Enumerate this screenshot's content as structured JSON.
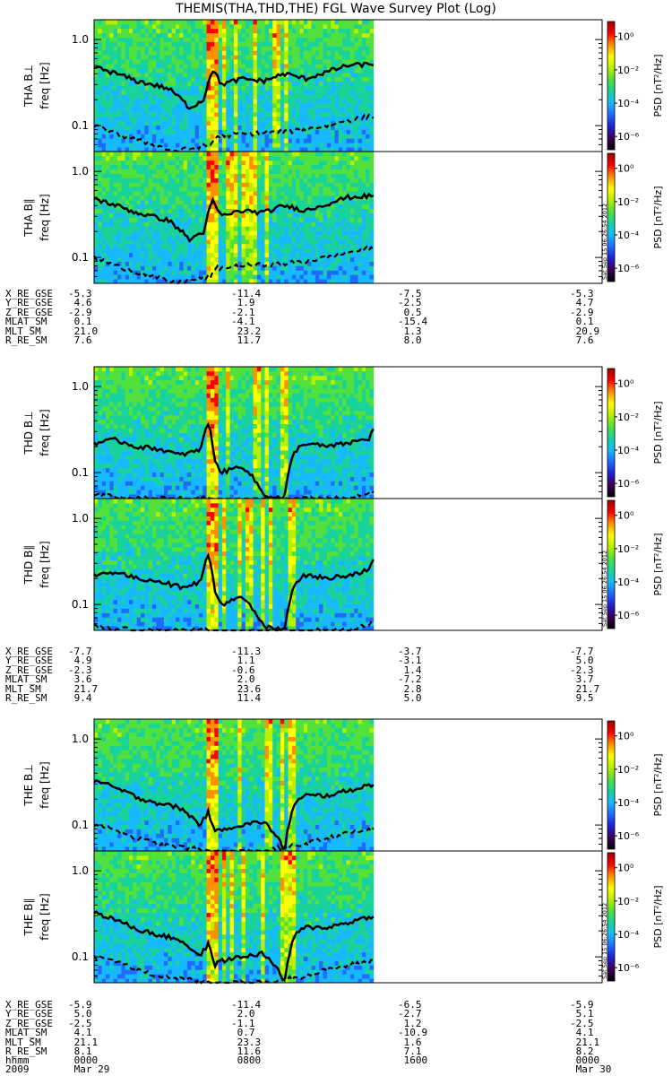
{
  "title": "THEMIS(THA,THD,THE) FGL Wave Survey Plot (Log)",
  "colors": {
    "trace": "#000000",
    "colormap": [
      "#000000",
      "#3a0055",
      "#2020d0",
      "#1e6bff",
      "#17b9ff",
      "#19d39a",
      "#52e03c",
      "#b8f000",
      "#ffff00",
      "#ff9000",
      "#ff0000",
      "#a00000"
    ]
  },
  "colorbar": {
    "label": "PSD [nT²/Hz]",
    "ticks": [
      "10⁰",
      "10⁻²",
      "10⁻⁴",
      "10⁻⁶"
    ],
    "tick_decades": [
      0,
      -2,
      -4,
      -6
    ],
    "range_decades": [
      -6.8,
      0.9
    ]
  },
  "timestamp": "Sat Sep 15 06:26:54 2012",
  "time_axis": {
    "labels": [
      {
        "row": "hhmm",
        "values": [
          "0000",
          "0800",
          "1600",
          "0000"
        ]
      },
      {
        "row": "2009",
        "values": [
          "Mar 29",
          "",
          "",
          "Mar 30"
        ]
      }
    ]
  },
  "chart_data": [
    {
      "type": "heatmap",
      "probe": "THA",
      "component": "B⊥",
      "ylabel": "freq [Hz]",
      "panel_label": "THA B⊥",
      "yscale": "log",
      "ylim": [
        0.05,
        1.7
      ],
      "yticks": [
        "1.0",
        "0.1"
      ],
      "data_coverage_hours": [
        0,
        13.2
      ],
      "xlim_hours": [
        0,
        24
      ],
      "median_freq_hz": {
        "t_hours": [
          0,
          2,
          3.5,
          4.5,
          5.2,
          5.6,
          6,
          7,
          8,
          9,
          10,
          11,
          12,
          13.2
        ],
        "values": [
          0.48,
          0.33,
          0.27,
          0.16,
          0.2,
          0.45,
          0.3,
          0.35,
          0.33,
          0.4,
          0.35,
          0.42,
          0.5,
          0.52
        ]
      },
      "lower_freq_hz": {
        "t_hours": [
          0,
          1,
          2,
          3,
          3.8,
          5.5,
          5.8,
          7,
          8,
          9,
          10,
          11,
          12,
          13.2
        ],
        "values": [
          0.1,
          0.08,
          0.068,
          0.058,
          0.05,
          0.06,
          0.075,
          0.08,
          0.082,
          0.085,
          0.09,
          0.1,
          0.115,
          0.13
        ]
      }
    },
    {
      "type": "heatmap",
      "probe": "THA",
      "component": "B∥",
      "ylabel": "freq [Hz]",
      "panel_label": "THA B∥",
      "yscale": "log",
      "ylim": [
        0.05,
        1.7
      ],
      "yticks": [
        "1.0",
        "0.1"
      ],
      "data_coverage_hours": [
        0,
        13.2
      ],
      "xlim_hours": [
        0,
        24
      ],
      "median_freq_hz": {
        "t_hours": [
          0,
          2,
          3.5,
          4.5,
          5.2,
          5.6,
          6,
          7,
          8,
          9,
          10,
          11,
          12,
          13.2
        ],
        "values": [
          0.48,
          0.33,
          0.27,
          0.16,
          0.2,
          0.45,
          0.3,
          0.35,
          0.33,
          0.4,
          0.35,
          0.42,
          0.5,
          0.52
        ]
      },
      "lower_freq_hz": {
        "t_hours": [
          0,
          1,
          2,
          3,
          3.8,
          5.5,
          5.8,
          7,
          8,
          9,
          10,
          11,
          12,
          13.2
        ],
        "values": [
          0.1,
          0.08,
          0.068,
          0.058,
          0.05,
          0.06,
          0.075,
          0.08,
          0.082,
          0.085,
          0.09,
          0.1,
          0.115,
          0.13
        ]
      }
    },
    {
      "type": "heatmap",
      "probe": "THD",
      "component": "B⊥",
      "ylabel": "freq [Hz]",
      "panel_label": "THD B⊥",
      "yscale": "log",
      "ylim": [
        0.05,
        1.7
      ],
      "yticks": [
        "1.0",
        "0.1"
      ],
      "data_coverage_hours": [
        0,
        13.2
      ],
      "xlim_hours": [
        0,
        24
      ],
      "median_freq_hz": {
        "t_hours": [
          0,
          1,
          2,
          3,
          4,
          5,
          5.4,
          5.7,
          6,
          7,
          8,
          9,
          9.5,
          10,
          11,
          12,
          13,
          13.2
        ],
        "values": [
          0.22,
          0.24,
          0.2,
          0.19,
          0.16,
          0.18,
          0.37,
          0.14,
          0.1,
          0.12,
          0.055,
          0.05,
          0.18,
          0.22,
          0.2,
          0.22,
          0.25,
          0.32
        ]
      },
      "lower_freq_hz": {
        "t_hours": [
          0,
          2,
          5.5,
          6,
          8,
          10,
          12,
          13.2
        ],
        "values": [
          0.055,
          0.05,
          0.05,
          0.045,
          0.05,
          0.05,
          0.05,
          0.06
        ]
      }
    },
    {
      "type": "heatmap",
      "probe": "THD",
      "component": "B∥",
      "ylabel": "freq [Hz]",
      "panel_label": "THD B∥",
      "yscale": "log",
      "ylim": [
        0.05,
        1.7
      ],
      "yticks": [
        "1.0",
        "0.1"
      ],
      "data_coverage_hours": [
        0,
        13.2
      ],
      "xlim_hours": [
        0,
        24
      ],
      "median_freq_hz": {
        "t_hours": [
          0,
          1,
          2,
          3,
          4,
          5,
          5.4,
          5.7,
          6,
          7,
          8,
          9,
          9.5,
          10,
          11,
          12,
          13,
          13.2
        ],
        "values": [
          0.22,
          0.24,
          0.2,
          0.19,
          0.16,
          0.18,
          0.37,
          0.14,
          0.1,
          0.12,
          0.055,
          0.05,
          0.18,
          0.22,
          0.2,
          0.22,
          0.25,
          0.32
        ]
      },
      "lower_freq_hz": {
        "t_hours": [
          0,
          2,
          5.5,
          6,
          8,
          10,
          12,
          13.2
        ],
        "values": [
          0.055,
          0.05,
          0.05,
          0.045,
          0.05,
          0.05,
          0.05,
          0.06
        ]
      }
    },
    {
      "type": "heatmap",
      "probe": "THE",
      "component": "B⊥",
      "ylabel": "freq [Hz]",
      "panel_label": "THE B⊥",
      "yscale": "log",
      "ylim": [
        0.05,
        1.7
      ],
      "yticks": [
        "1.0",
        "0.1"
      ],
      "data_coverage_hours": [
        0,
        13.2
      ],
      "xlim_hours": [
        0,
        24
      ],
      "median_freq_hz": {
        "t_hours": [
          0,
          1,
          2,
          3,
          4,
          5,
          5.4,
          5.7,
          6,
          7,
          8,
          9,
          9.5,
          10,
          11,
          12,
          13.2
        ],
        "values": [
          0.33,
          0.27,
          0.21,
          0.18,
          0.16,
          0.1,
          0.14,
          0.08,
          0.09,
          0.1,
          0.11,
          0.05,
          0.18,
          0.22,
          0.22,
          0.25,
          0.3
        ]
      },
      "lower_freq_hz": {
        "t_hours": [
          0,
          1,
          2,
          3,
          5.5,
          8,
          10,
          11,
          12,
          13.2
        ],
        "values": [
          0.1,
          0.09,
          0.07,
          0.06,
          0.05,
          0.05,
          0.06,
          0.07,
          0.08,
          0.09
        ]
      }
    },
    {
      "type": "heatmap",
      "probe": "THE",
      "component": "B∥",
      "ylabel": "freq [Hz]",
      "panel_label": "THE B∥",
      "yscale": "log",
      "ylim": [
        0.05,
        1.7
      ],
      "yticks": [
        "1.0",
        "0.1"
      ],
      "data_coverage_hours": [
        0,
        13.2
      ],
      "xlim_hours": [
        0,
        24
      ],
      "median_freq_hz": {
        "t_hours": [
          0,
          1,
          2,
          3,
          4,
          5,
          5.4,
          5.7,
          6,
          7,
          8,
          9,
          9.5,
          10,
          11,
          12,
          13.2
        ],
        "values": [
          0.33,
          0.27,
          0.21,
          0.18,
          0.16,
          0.1,
          0.14,
          0.08,
          0.09,
          0.1,
          0.11,
          0.05,
          0.18,
          0.22,
          0.22,
          0.25,
          0.3
        ]
      },
      "lower_freq_hz": {
        "t_hours": [
          0,
          1,
          2,
          3,
          5.5,
          8,
          10,
          11,
          12,
          13.2
        ],
        "values": [
          0.1,
          0.09,
          0.07,
          0.06,
          0.05,
          0.05,
          0.06,
          0.07,
          0.08,
          0.09
        ]
      }
    }
  ],
  "ephemeris": [
    {
      "probe": "THA",
      "rows": [
        {
          "name": "X_RE_GSE",
          "values": [
            "-5.3",
            "-11.4",
            "-7.5",
            "-5.3"
          ]
        },
        {
          "name": "Y_RE_GSE",
          "values": [
            "4.6",
            "1.9",
            "-2.5",
            "4.7"
          ]
        },
        {
          "name": "Z_RE_GSE",
          "values": [
            "-2.9",
            "-2.1",
            "0.5",
            "-2.9"
          ]
        },
        {
          "name": "MLAT_SM",
          "values": [
            "0.1",
            "-4.1",
            "-15.4",
            "0.1"
          ]
        },
        {
          "name": "MLT_SM",
          "values": [
            "21.0",
            "23.2",
            "1.3",
            "20.9"
          ]
        },
        {
          "name": "R_RE_SM",
          "values": [
            "7.6",
            "11.7",
            "8.0",
            "7.6"
          ]
        }
      ]
    },
    {
      "probe": "THD",
      "rows": [
        {
          "name": "X_RE_GSE",
          "values": [
            "-7.7",
            "-11.3",
            "-3.7",
            "-7.7"
          ]
        },
        {
          "name": "Y_RE_GSE",
          "values": [
            "4.9",
            "1.1",
            "-3.1",
            "5.0"
          ]
        },
        {
          "name": "Z_RE_GSE",
          "values": [
            "-2.3",
            "-0.6",
            "1.4",
            "-2.3"
          ]
        },
        {
          "name": "MLAT_SM",
          "values": [
            "3.6",
            "2.0",
            "-7.2",
            "3.7"
          ]
        },
        {
          "name": "MLT_SM",
          "values": [
            "21.7",
            "23.6",
            "2.8",
            "21.7"
          ]
        },
        {
          "name": "R_RE_SM",
          "values": [
            "9.4",
            "11.4",
            "5.0",
            "9.5"
          ]
        }
      ]
    },
    {
      "probe": "THE",
      "rows": [
        {
          "name": "X_RE_GSE",
          "values": [
            "-5.9",
            "-11.4",
            "-6.5",
            "-5.9"
          ]
        },
        {
          "name": "Y_RE_GSE",
          "values": [
            "5.0",
            "2.0",
            "-2.7",
            "5.1"
          ]
        },
        {
          "name": "Z_RE_GSE",
          "values": [
            "-2.5",
            "-1.1",
            "1.2",
            "-2.5"
          ]
        },
        {
          "name": "MLAT_SM",
          "values": [
            "4.1",
            "0.7",
            "-10.9",
            "4.1"
          ]
        },
        {
          "name": "MLT_SM",
          "values": [
            "21.1",
            "23.3",
            "1.6",
            "21.1"
          ]
        },
        {
          "name": "R_RE_SM",
          "values": [
            "8.1",
            "11.6",
            "7.1",
            "8.2"
          ]
        }
      ]
    }
  ]
}
